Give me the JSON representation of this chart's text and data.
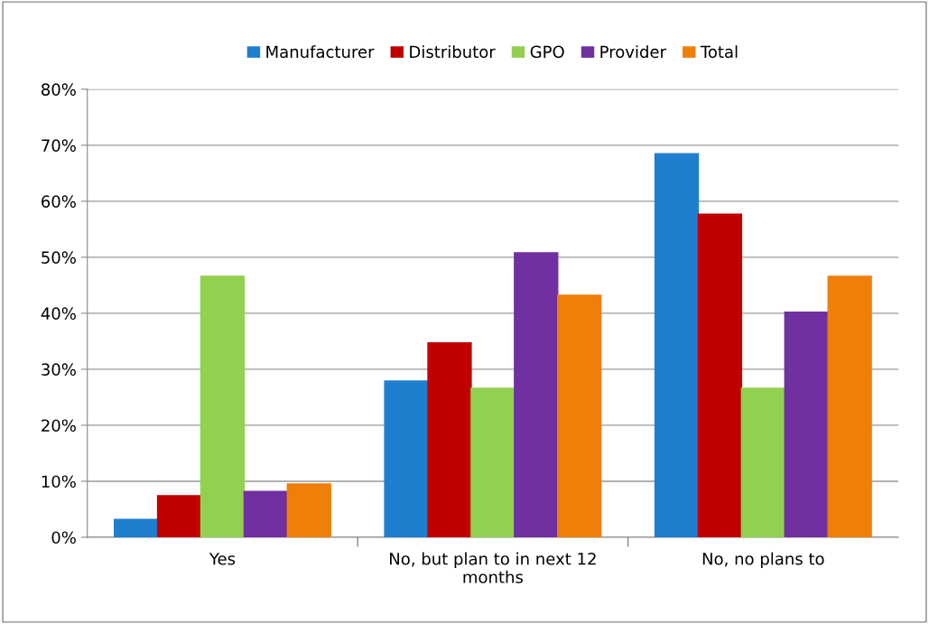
{
  "chart_data": {
    "type": "bar",
    "categories": [
      "Yes",
      "No, but plan to in next 12 months",
      "No, no plans to"
    ],
    "series": [
      {
        "name": "Manufacturer",
        "color": "#1f7fcf",
        "values": [
          3.2,
          27.9,
          68.5
        ]
      },
      {
        "name": "Distributor",
        "color": "#c00000",
        "values": [
          7.4,
          34.7,
          57.7
        ]
      },
      {
        "name": "GPO",
        "color": "#92d050",
        "values": [
          46.6,
          26.6,
          26.6
        ]
      },
      {
        "name": "Provider",
        "color": "#7030a0",
        "values": [
          8.2,
          50.8,
          40.2
        ]
      },
      {
        "name": "Total",
        "color": "#f07f09",
        "values": [
          9.5,
          43.2,
          46.6
        ]
      }
    ],
    "ylim": [
      0,
      80
    ],
    "yticks": [
      {
        "value": 0,
        "label": "0%"
      },
      {
        "value": 10,
        "label": "10%"
      },
      {
        "value": 20,
        "label": "20%"
      },
      {
        "value": 30,
        "label": "30%"
      },
      {
        "value": 40,
        "label": "40%"
      },
      {
        "value": 50,
        "label": "50%"
      },
      {
        "value": 60,
        "label": "60%"
      },
      {
        "value": 70,
        "label": "70%"
      },
      {
        "value": 80,
        "label": "80%"
      }
    ],
    "grid": "y",
    "legend": "top"
  }
}
